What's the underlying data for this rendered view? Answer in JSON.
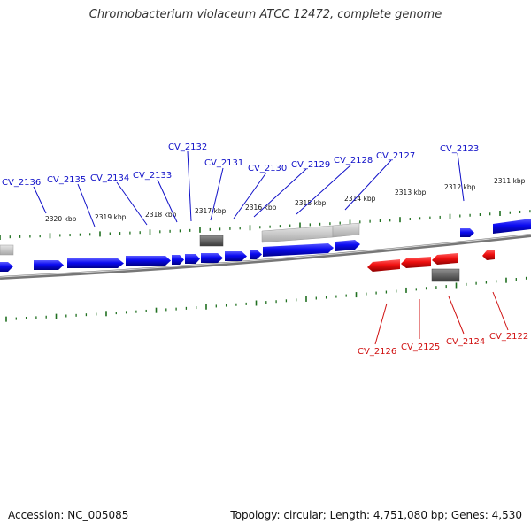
{
  "title": "Chromobacterium violaceum ATCC 12472, complete genome",
  "footer": {
    "accession": "Accession: NC_005085",
    "summary": "Topology: circular; Length: 4,751,080 bp; Genes: 4,530"
  },
  "colors": {
    "plus_gene": "#0a0af0",
    "minus_gene": "#f01010",
    "grey_feature": "#6a6a6a",
    "light_feature": "#c8c8c8",
    "ticks": "#207020",
    "backbone": "#888888",
    "plus_label": "#1010c8",
    "minus_label": "#d01010"
  },
  "kbp_labels": [
    "2320 kbp",
    "2319 kbp",
    "2318 kbp",
    "2317 kbp",
    "2316 kbp",
    "2315 kbp",
    "2314 kbp",
    "2313 kbp",
    "2312 kbp",
    "2311 kbp"
  ],
  "plus_genes": [
    "CV_2136",
    "CV_2135",
    "CV_2134",
    "CV_2133",
    "CV_2132",
    "CV_2131",
    "CV_2130",
    "CV_2129",
    "CV_2128",
    "CV_2127",
    "CV_2123"
  ],
  "minus_genes": [
    "CV_2126",
    "CV_2125",
    "CV_2124",
    "CV_2122"
  ]
}
